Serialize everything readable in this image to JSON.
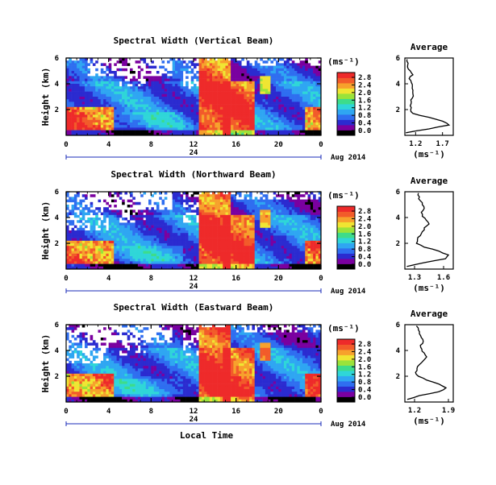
{
  "chart_data": [
    {
      "type": "heatmap",
      "title": "Spectral Width (Vertical Beam)",
      "ylabel": "Height (km)",
      "x_ticks": [
        "0",
        "4",
        "8",
        "12",
        "16",
        "20",
        "0"
      ],
      "date_label": "24",
      "date_suffix": "Aug 2014",
      "y_ticks": [
        "6",
        "4",
        "2"
      ],
      "ylim": [
        0,
        6
      ],
      "xlim": [
        0,
        24
      ],
      "colorbar": {
        "unit": "(ms⁻¹)",
        "ticks": [
          "2.8",
          "2.4",
          "2.0",
          "1.6",
          "1.2",
          "0.8",
          "0.4",
          "0.0"
        ],
        "range": [
          0,
          3.0
        ]
      },
      "average": {
        "title": "Average",
        "xlabel": "(ms⁻¹)",
        "x_ticks": [
          "1.2",
          "1.7"
        ],
        "xlim": [
          1.0,
          1.9
        ],
        "y_ticks": [
          "6",
          "4",
          "2"
        ],
        "heights": [
          0.2,
          0.5,
          0.8,
          1.1,
          1.4,
          1.7,
          2.0,
          2.3,
          2.6,
          2.9,
          3.2,
          3.5,
          3.8,
          4.1,
          4.4,
          4.7,
          5.0,
          5.3,
          5.6,
          5.9
        ],
        "values": [
          1.02,
          1.45,
          1.82,
          1.7,
          1.45,
          1.15,
          1.11,
          1.1,
          1.12,
          1.14,
          1.15,
          1.15,
          1.14,
          1.12,
          1.08,
          1.15,
          1.1,
          1.05,
          1.06,
          1.04
        ]
      }
    },
    {
      "type": "heatmap",
      "title": "Spectral Width (Northward Beam)",
      "ylabel": "Height (km)",
      "x_ticks": [
        "0",
        "4",
        "8",
        "12",
        "16",
        "20",
        "0"
      ],
      "date_label": "24",
      "date_suffix": "Aug 2014",
      "y_ticks": [
        "6",
        "4",
        "2"
      ],
      "ylim": [
        0,
        6
      ],
      "xlim": [
        0,
        24
      ],
      "colorbar": {
        "unit": "(ms⁻¹)",
        "ticks": [
          "2.8",
          "2.4",
          "2.0",
          "1.6",
          "1.2",
          "0.8",
          "0.4",
          "0.0"
        ],
        "range": [
          0,
          3.0
        ]
      },
      "average": {
        "title": "Average",
        "xlabel": "(ms⁻¹)",
        "x_ticks": [
          "1.3",
          "1.6"
        ],
        "xlim": [
          1.2,
          1.7
        ],
        "y_ticks": [
          "6",
          "4",
          "2"
        ],
        "heights": [
          0.2,
          0.5,
          0.8,
          1.1,
          1.4,
          1.7,
          2.0,
          2.3,
          2.6,
          2.9,
          3.2,
          3.5,
          3.8,
          4.1,
          4.4,
          4.7,
          5.0,
          5.3,
          5.6,
          5.9
        ],
        "values": [
          1.22,
          1.4,
          1.62,
          1.65,
          1.55,
          1.4,
          1.32,
          1.33,
          1.36,
          1.38,
          1.4,
          1.45,
          1.42,
          1.38,
          1.37,
          1.4,
          1.38,
          1.36,
          1.35,
          1.34
        ]
      }
    },
    {
      "type": "heatmap",
      "title": "Spectral Width (Eastward Beam)",
      "ylabel": "Height (km)",
      "xlabel": "Local Time",
      "x_ticks": [
        "0",
        "4",
        "8",
        "12",
        "16",
        "20",
        "0"
      ],
      "date_label": "24",
      "date_suffix": "Aug 2014",
      "y_ticks": [
        "6",
        "4",
        "2"
      ],
      "ylim": [
        0,
        6
      ],
      "xlim": [
        0,
        24
      ],
      "colorbar": {
        "unit": "(ms⁻¹)",
        "ticks": [
          "2.8",
          "2.4",
          "2.0",
          "1.6",
          "1.2",
          "0.8",
          "0.4",
          "0.0"
        ],
        "range": [
          0,
          3.0
        ]
      },
      "average": {
        "title": "Average",
        "xlabel": "(ms⁻¹)",
        "x_ticks": [
          "1.2",
          "1.9"
        ],
        "xlim": [
          1.0,
          2.0
        ],
        "y_ticks": [
          "6",
          "4",
          "2"
        ],
        "heights": [
          0.2,
          0.5,
          0.8,
          1.1,
          1.4,
          1.7,
          2.0,
          2.3,
          2.6,
          2.9,
          3.2,
          3.5,
          3.8,
          4.1,
          4.4,
          4.7,
          5.0,
          5.3,
          5.6,
          5.9
        ],
        "values": [
          1.05,
          1.3,
          1.7,
          1.85,
          1.7,
          1.45,
          1.28,
          1.22,
          1.25,
          1.3,
          1.38,
          1.45,
          1.4,
          1.35,
          1.32,
          1.38,
          1.34,
          1.3,
          1.28,
          1.24
        ]
      }
    }
  ],
  "colors": {
    "scale": [
      "#000000",
      "#7a00a0",
      "#2b2bd0",
      "#2f6ef0",
      "#2fa6f2",
      "#2fd6d8",
      "#3ddc8a",
      "#9ae33a",
      "#f0e532",
      "#f7a12c",
      "#f25b2a",
      "#ee2a2a"
    ],
    "axis": "#000000",
    "date_line": "#1a2bb8"
  }
}
